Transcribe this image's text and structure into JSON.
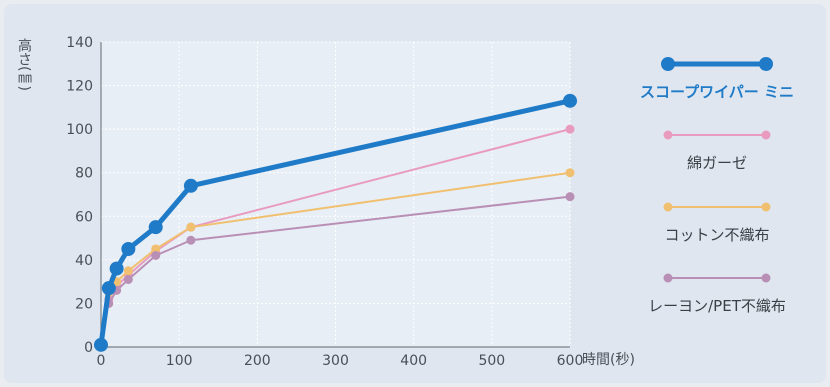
{
  "chart_data": {
    "type": "line",
    "xlabel": "時間(秒)",
    "ylabel": "高さ(㎜)",
    "xlim": [
      0,
      600
    ],
    "ylim": [
      0,
      140
    ],
    "xticks": [
      0,
      100,
      200,
      300,
      400,
      500,
      600
    ],
    "yticks": [
      0,
      20,
      40,
      60,
      80,
      100,
      120,
      140
    ],
    "grid": true,
    "legend": "right",
    "series": [
      {
        "name": "スコープワイパー ミニ",
        "color": "#1f7bc8",
        "primary": true,
        "x": [
          0,
          10,
          20,
          35,
          70,
          115,
          600
        ],
        "y": [
          1,
          27,
          36,
          45,
          55,
          74,
          113
        ]
      },
      {
        "name": "綿ガーゼ",
        "color": "#e99bbf",
        "primary": false,
        "x": [
          10,
          20,
          35,
          70,
          115,
          600
        ],
        "y": [
          22,
          28,
          33,
          44,
          55,
          100
        ]
      },
      {
        "name": "コットン不織布",
        "color": "#f0c070",
        "primary": false,
        "x": [
          10,
          20,
          35,
          70,
          115,
          600
        ],
        "y": [
          25,
          30,
          35,
          45,
          55,
          80
        ]
      },
      {
        "name": "レーヨン/PET不織布",
        "color": "#b98fb5",
        "primary": false,
        "x": [
          10,
          20,
          35,
          70,
          115,
          600
        ],
        "y": [
          20,
          26,
          31,
          42,
          49,
          69
        ]
      }
    ]
  }
}
